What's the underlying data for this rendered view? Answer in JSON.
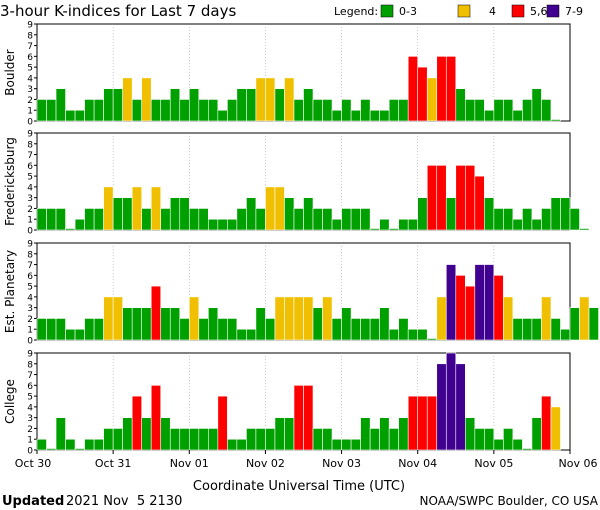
{
  "title": "3-hour K-indices for Last 7 days",
  "legend": {
    "label": "Legend:",
    "items": [
      {
        "text": "0-3",
        "color": "#00a000"
      },
      {
        "text": "4",
        "color": "#f0c000"
      },
      {
        "text": "5,6",
        "color": "#ff0000"
      },
      {
        "text": "7-9",
        "color": "#400090"
      }
    ]
  },
  "xlabel": "Coordinate Universal Time (UTC)",
  "x_ticks": [
    "Oct 30",
    "Oct 31",
    "Nov 01",
    "Nov 02",
    "Nov 03",
    "Nov 04",
    "Nov 05",
    "Nov 06"
  ],
  "footer": {
    "updated_label": "Updated",
    "updated_value": "2021 Nov  5 2130",
    "source": "NOAA/SWPC Boulder, CO USA"
  },
  "chart_data": {
    "type": "bar",
    "ylim": [
      0,
      9
    ],
    "y_ticks": [
      "0",
      "1",
      "2",
      "3",
      "4",
      "5",
      "6",
      "7",
      "8",
      "9"
    ],
    "intervals_per_day": 8,
    "days": 7,
    "series": [
      {
        "name": "Boulder",
        "values": [
          2,
          2,
          3,
          1,
          1,
          2,
          2,
          3,
          3,
          4,
          2,
          4,
          2,
          2,
          3,
          2,
          3,
          2,
          2,
          1,
          2,
          3,
          3,
          4,
          4,
          3,
          4,
          2,
          3,
          2,
          2,
          1,
          2,
          1,
          2,
          1,
          1,
          2,
          2,
          6,
          5,
          4,
          6,
          6,
          3,
          2,
          2,
          1,
          2,
          2,
          1,
          2,
          3,
          2,
          0
        ]
      },
      {
        "name": "Fredericksburg",
        "values": [
          2,
          2,
          2,
          0,
          1,
          2,
          2,
          4,
          3,
          3,
          4,
          2,
          4,
          2,
          3,
          3,
          2,
          2,
          1,
          1,
          1,
          2,
          3,
          2,
          4,
          4,
          3,
          2,
          3,
          2,
          2,
          1,
          2,
          2,
          2,
          0,
          1,
          0,
          1,
          1,
          3,
          6,
          6,
          3,
          6,
          6,
          5,
          3,
          2,
          2,
          1,
          2,
          1,
          2,
          3,
          3,
          2,
          0
        ]
      },
      {
        "name": "Est. Planetary",
        "values": [
          2,
          2,
          2,
          1,
          1,
          2,
          2,
          4,
          4,
          3,
          3,
          3,
          5,
          3,
          3,
          2,
          4,
          2,
          3,
          2,
          2,
          1,
          1,
          3,
          2,
          4,
          4,
          4,
          4,
          3,
          4,
          2,
          3,
          2,
          2,
          2,
          3,
          1,
          2,
          1,
          1,
          0,
          4,
          7,
          6,
          5,
          7,
          7,
          6,
          4,
          2,
          2,
          2,
          4,
          2,
          1,
          3,
          4,
          3
        ]
      },
      {
        "name": "College",
        "values": [
          1,
          0,
          3,
          1,
          0,
          1,
          1,
          2,
          2,
          3,
          5,
          3,
          6,
          3,
          2,
          2,
          2,
          2,
          2,
          5,
          1,
          1,
          2,
          2,
          2,
          3,
          3,
          6,
          6,
          2,
          2,
          1,
          1,
          1,
          3,
          2,
          3,
          2,
          3,
          5,
          5,
          5,
          8,
          9,
          8,
          3,
          2,
          2,
          1,
          2,
          1,
          0,
          3,
          5,
          4
        ]
      }
    ]
  }
}
